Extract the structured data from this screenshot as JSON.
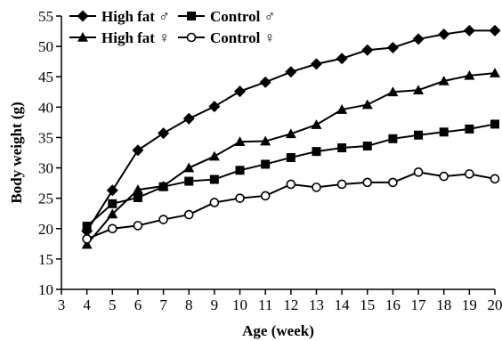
{
  "chart_data": {
    "type": "line",
    "title": "",
    "xlabel": "Age (week)",
    "ylabel": "Body weight (g)",
    "xlim": [
      3,
      20
    ],
    "ylim": [
      10,
      55
    ],
    "xticks": [
      3,
      4,
      5,
      6,
      7,
      8,
      9,
      10,
      11,
      12,
      13,
      14,
      15,
      16,
      17,
      18,
      19,
      20
    ],
    "yticks": [
      10,
      15,
      20,
      25,
      30,
      35,
      40,
      45,
      50,
      55
    ],
    "grid": false,
    "legend_position": "top-left",
    "x": [
      4,
      5,
      6,
      7,
      8,
      9,
      10,
      11,
      12,
      13,
      14,
      15,
      16,
      17,
      18,
      19,
      20
    ],
    "series": [
      {
        "name": "High fat ♂",
        "marker": "diamond-filled",
        "values": [
          19.6,
          26.3,
          32.9,
          35.7,
          38.1,
          40.1,
          42.6,
          44.1,
          45.8,
          47.1,
          48.0,
          49.4,
          49.8,
          51.2,
          52.0,
          52.6,
          52.6
        ]
      },
      {
        "name": "Control ♂",
        "marker": "square-filled",
        "values": [
          20.4,
          24.1,
          25.1,
          26.9,
          27.8,
          28.1,
          29.6,
          30.6,
          31.7,
          32.7,
          33.3,
          33.6,
          34.8,
          35.4,
          35.9,
          36.4,
          37.2
        ]
      },
      {
        "name": "High fat ♀",
        "marker": "triangle-filled",
        "values": [
          17.4,
          22.4,
          26.4,
          27.0,
          30.0,
          31.9,
          34.3,
          34.4,
          35.6,
          37.1,
          39.6,
          40.4,
          42.5,
          42.8,
          44.3,
          45.2,
          45.6
        ]
      },
      {
        "name": "Control ♀",
        "marker": "circle-open",
        "values": [
          18.3,
          20.0,
          20.5,
          21.5,
          22.3,
          24.3,
          25.0,
          25.4,
          27.3,
          26.8,
          27.3,
          27.6,
          27.6,
          29.3,
          28.6,
          29.0,
          28.2
        ]
      }
    ]
  }
}
